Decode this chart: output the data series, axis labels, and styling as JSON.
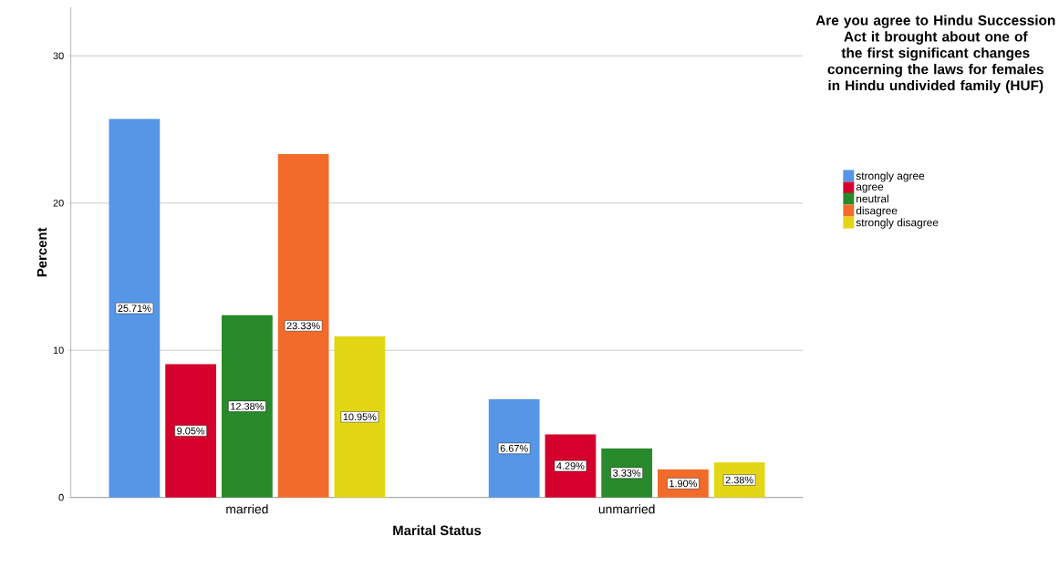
{
  "chart_data": {
    "type": "bar",
    "xlabel": "Marital Status",
    "ylabel": "Percent",
    "legend_title": "Are you agree to Hindu Succession Act it brought about one of the first significant changes concerning the laws for females in Hindu undivided family (HUF)",
    "categories": [
      "married",
      "unmarried"
    ],
    "series": [
      {
        "name": "strongly agree",
        "color": "#5596e6",
        "values": [
          25.71,
          6.67
        ],
        "value_labels": [
          "25.71%",
          "6.67%"
        ]
      },
      {
        "name": "agree",
        "color": "#d5002b",
        "values": [
          9.05,
          4.29
        ],
        "value_labels": [
          "9.05%",
          "4.29%"
        ]
      },
      {
        "name": "neutral",
        "color": "#288a2a",
        "values": [
          12.38,
          3.33
        ],
        "value_labels": [
          "12.38%",
          "3.33%"
        ]
      },
      {
        "name": "disagree",
        "color": "#f26b2a",
        "values": [
          23.33,
          1.9
        ],
        "value_labels": [
          "23.33%",
          "1.90%"
        ]
      },
      {
        "name": "strongly disagree",
        "color": "#e3d615",
        "values": [
          10.95,
          2.38
        ],
        "value_labels": [
          "10.95%",
          "2.38%"
        ]
      }
    ],
    "ylim": [
      0,
      33.3
    ],
    "yticks": [
      0,
      10,
      20,
      30
    ],
    "grid": "y",
    "legend": "top right"
  }
}
